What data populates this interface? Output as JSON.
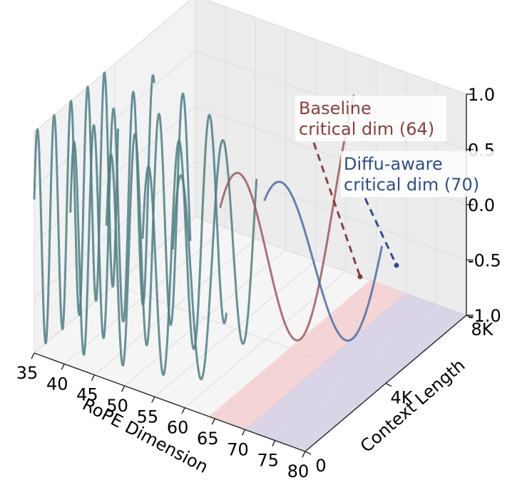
{
  "chart_data": {
    "type": "line",
    "projection": "3d",
    "xlabel": "RoPE Dimension",
    "ylabel": "Context Length",
    "zlabel": "",
    "x_ticks": [
      "35",
      "40",
      "45",
      "50",
      "55",
      "60",
      "65",
      "70",
      "75",
      "80"
    ],
    "y_ticks": [
      "0",
      "4K",
      "8K"
    ],
    "z_ticks": [
      "-1.0",
      "-0.5",
      "0.0",
      "0.5",
      "1.0"
    ],
    "xlim": [
      35,
      80
    ],
    "ylim": [
      "0",
      "8K"
    ],
    "zlim": [
      -1.0,
      1.0
    ],
    "grid": true,
    "series": [
      {
        "dimension": 35,
        "amplitude": 1.0,
        "cycles": 10,
        "role": "low-dim",
        "color": "#4e7f85"
      },
      {
        "dimension": 41,
        "amplitude": 1.0,
        "cycles": 8.5,
        "role": "low-dim",
        "color": "#4e7f85"
      },
      {
        "dimension": 47,
        "amplitude": 1.0,
        "cycles": 7,
        "role": "low-dim",
        "color": "#4e7f85"
      },
      {
        "dimension": 53,
        "amplitude": 1.0,
        "cycles": 5.5,
        "role": "low-dim",
        "color": "#4e7f85"
      },
      {
        "dimension": 58,
        "amplitude": 1.0,
        "cycles": 4,
        "role": "low-dim",
        "color": "#4e7f85"
      },
      {
        "dimension": 64,
        "amplitude": 1.0,
        "cycles": 2,
        "role": "baseline",
        "color": "#a05a5a"
      },
      {
        "dimension": 70,
        "amplitude": 1.0,
        "cycles": 1.5,
        "role": "diffu-aware",
        "color": "#4a6fa5"
      }
    ],
    "regions": [
      {
        "x_from": 64,
        "x_to": 70,
        "color": "#f3c8c8"
      },
      {
        "x_from": 70,
        "x_to": 80,
        "color": "#cfc8e0"
      }
    ],
    "annotations": [
      {
        "text_lines": [
          "Baseline",
          "critical dim (64)"
        ],
        "color": "#8b3e3e"
      },
      {
        "text_lines": [
          "Diffu-aware",
          "critical dim (70)"
        ],
        "color": "#2e4f8a"
      }
    ]
  }
}
